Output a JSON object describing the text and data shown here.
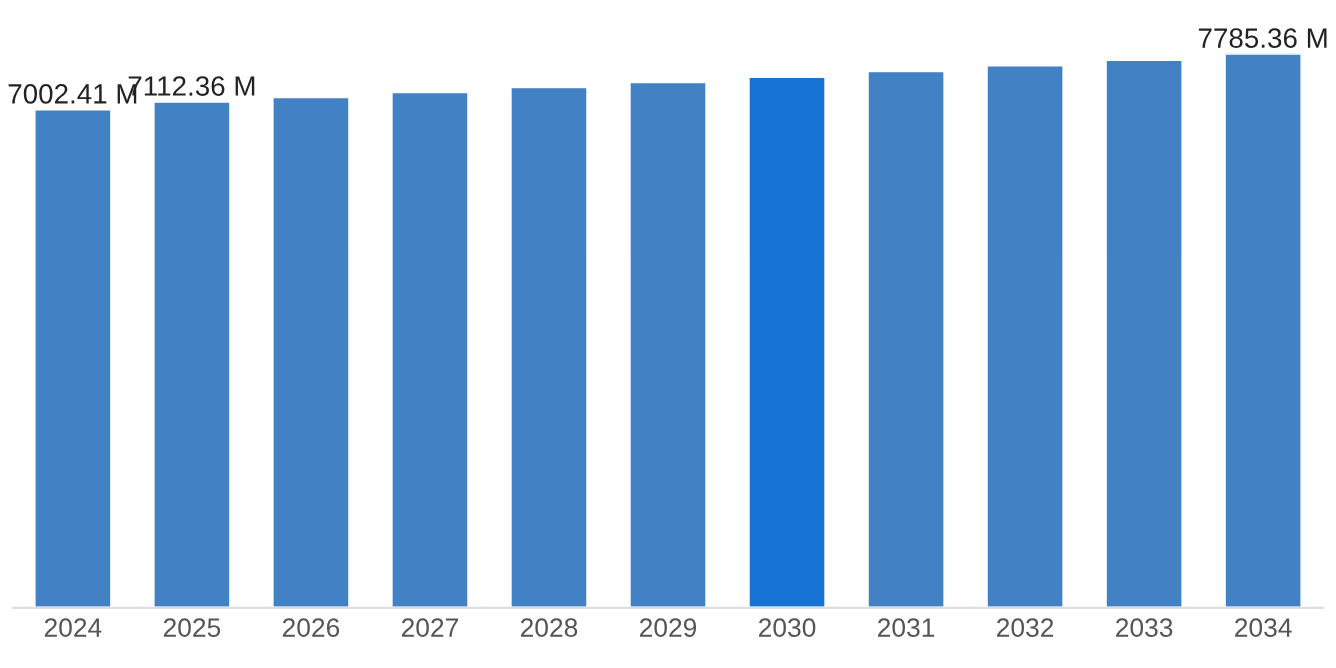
{
  "chart_data": {
    "type": "bar",
    "categories": [
      "2024",
      "2025",
      "2026",
      "2027",
      "2028",
      "2029",
      "2030",
      "2031",
      "2032",
      "2033",
      "2034"
    ],
    "values": [
      7002.41,
      7112.36,
      7175,
      7245,
      7315,
      7385,
      7460,
      7540,
      7620,
      7700,
      7785.36
    ],
    "colors": [
      "#4181c4",
      "#4181c4",
      "#4181c4",
      "#4181c4",
      "#4181c4",
      "#4181c4",
      "#1874d4",
      "#4181c4",
      "#4181c4",
      "#4181c4",
      "#4181c4"
    ],
    "value_labels": [
      "7002.41 M",
      "7112.36 M",
      null,
      null,
      null,
      null,
      null,
      null,
      null,
      null,
      "7785.36 M"
    ],
    "tick_labels": "x",
    "grid": false,
    "legend": false
  }
}
